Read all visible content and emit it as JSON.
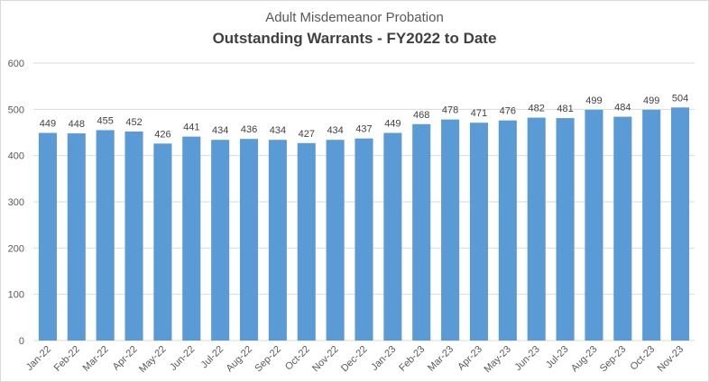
{
  "chart_data": {
    "type": "bar",
    "subtitle": "Adult Misdemeanor Probation",
    "title": "Outstanding Warrants - FY2022 to Date",
    "categories": [
      "Jan-22",
      "Feb-22",
      "Mar-22",
      "Apr-22",
      "May-22",
      "Jun-22",
      "Jul-22",
      "Aug-22",
      "Sep-22",
      "Oct-22",
      "Nov-22",
      "Dec-22",
      "Jan-23",
      "Feb-23",
      "Mar-23",
      "Apr-23",
      "May-23",
      "Jun-23",
      "Jul-23",
      "Aug-23",
      "Sep-23",
      "Oct-23",
      "Nov-23"
    ],
    "values": [
      449,
      448,
      455,
      452,
      426,
      441,
      434,
      436,
      434,
      427,
      434,
      437,
      449,
      468,
      478,
      471,
      476,
      482,
      481,
      499,
      484,
      499,
      504
    ],
    "ylim": [
      0,
      600
    ],
    "yticks": [
      0,
      100,
      200,
      300,
      400,
      500,
      600
    ],
    "grid": true,
    "bar_color": "#5b9bd5",
    "grid_color": "#d9d9d9",
    "xlabel": "",
    "ylabel": ""
  }
}
